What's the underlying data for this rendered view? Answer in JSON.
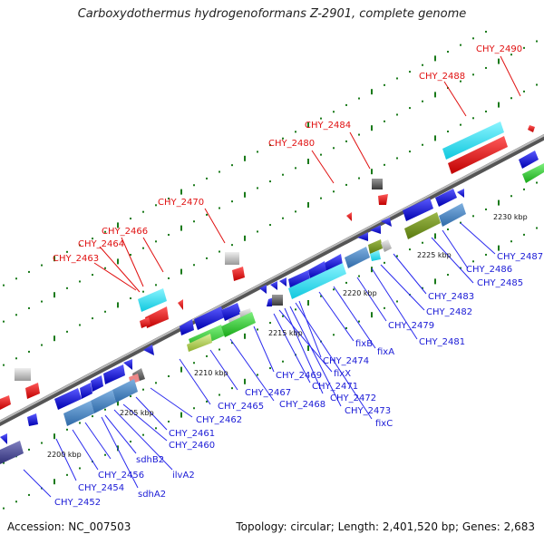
{
  "title": "Carboxydothermus hydrogenoformans Z-2901, complete genome",
  "footer": {
    "accession": "Accession: NC_007503",
    "topology": "Topology: circular; Length: 2,401,520 bp; Genes: 2,683"
  },
  "scale_labels": [
    "2200 kbp",
    "2205 kbp",
    "2210 kbp",
    "2215 kbp",
    "2220 kbp",
    "2225 kbp",
    "2230 kbp"
  ],
  "red_labels": [
    "CHY_2463",
    "CHY_2464",
    "CHY_2466",
    "CHY_2470",
    "CHY_2480",
    "CHY_2484",
    "CHY_2488",
    "CHY_2490"
  ],
  "blue_labels": [
    "CHY_2452",
    "CHY_2454",
    "CHY_2456",
    "sdhA2",
    "sdhB2",
    "ilvA2",
    "CHY_2460",
    "CHY_2461",
    "CHY_2462",
    "CHY_2465",
    "CHY_2467",
    "CHY_2468",
    "CHY_2469",
    "CHY_2471",
    "fixX",
    "CHY_2472",
    "CHY_2473",
    "fixC",
    "CHY_2474",
    "fixB",
    "fixA",
    "CHY_2479",
    "CHY_2481",
    "CHY_2482",
    "CHY_2483",
    "CHY_2485",
    "CHY_2486",
    "CHY_2487"
  ],
  "colors": {
    "forward_gene": "#1010e0",
    "reverse_gene": "#e81010",
    "label_blue": "#1a1ad6",
    "label_red": "#e01010",
    "tick_green": "#1a7a1a",
    "axis": "#777777",
    "cyan": "#22ddee",
    "steel": "#4a88c4",
    "olive": "#6a8a20"
  }
}
